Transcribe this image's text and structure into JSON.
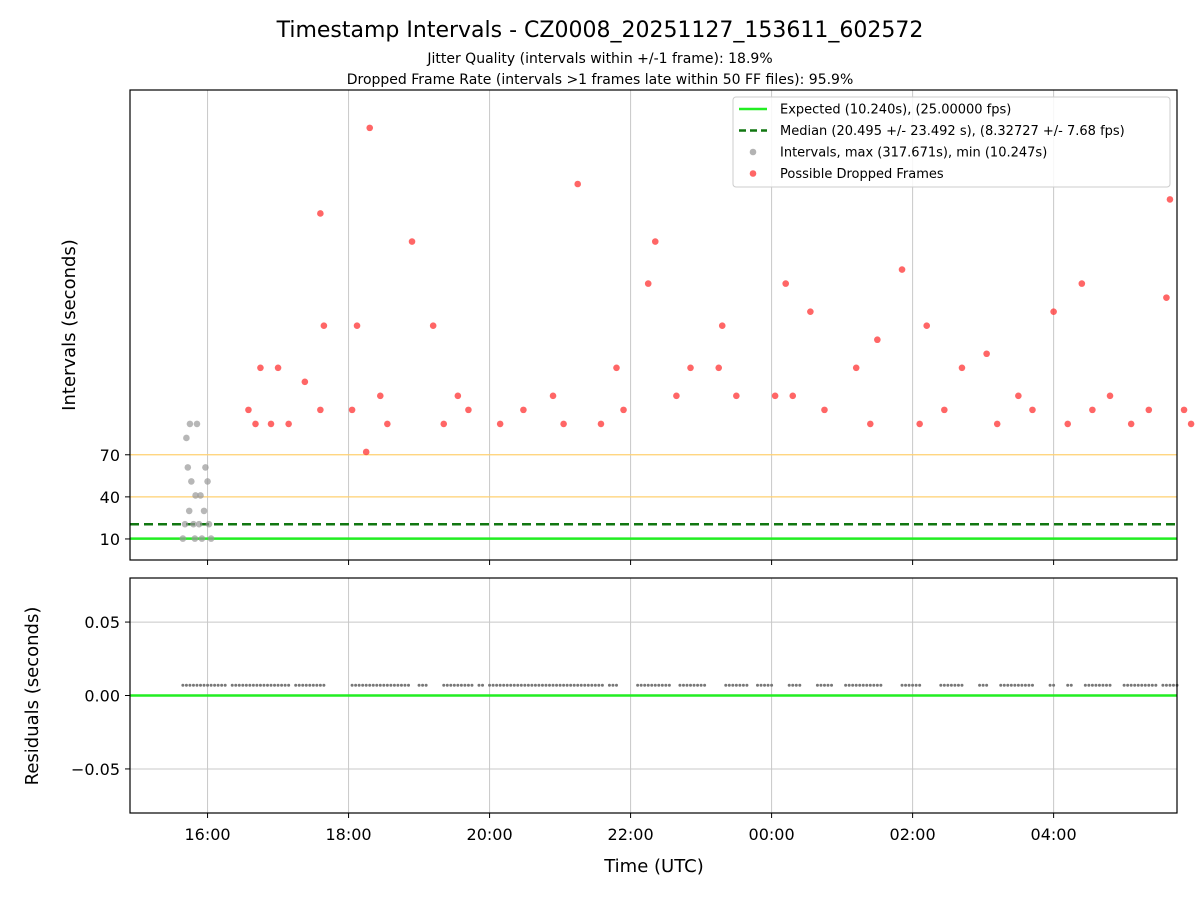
{
  "chart_data": [
    {
      "type": "scatter",
      "panel": "intervals",
      "title": "Timestamp Intervals - CZ0008_20251127_153611_602572",
      "subtitle_lines": [
        "Jitter Quality (intervals within +/-1 frame): 18.9%",
        "Dropped Frame Rate (intervals >1 frames late within 50 FF files): 95.9%"
      ],
      "ylabel": "Intervals (seconds)",
      "xlabel": "",
      "x_unit": "hours since 00:00 of first day",
      "xlim": [
        14.9,
        29.75
      ],
      "ylim": [
        -5,
        330
      ],
      "yticks": [
        10,
        40,
        70
      ],
      "ytick_labels": [
        "10",
        "40",
        "70"
      ],
      "xticks": [
        16,
        18,
        20,
        22,
        24,
        26,
        28
      ],
      "reference_lines": [
        {
          "name": "Expected",
          "y": 10.24,
          "color": "#22ee22",
          "style": "solid"
        },
        {
          "name": "Median",
          "y": 20.495,
          "color": "#117711",
          "style": "dashed"
        },
        {
          "name": "Gridline 40",
          "y": 40,
          "color": "#ffd070",
          "style": "solid"
        },
        {
          "name": "Gridline 70",
          "y": 70,
          "color": "#ffd070",
          "style": "solid"
        }
      ],
      "legend": {
        "placement": "top-right",
        "entries": [
          {
            "label": "Expected (10.240s), (25.00000 fps)",
            "kind": "line",
            "color": "#22ee22",
            "style": "solid"
          },
          {
            "label": "Median (20.495 +/- 23.492 s), (8.32727 +/- 7.68 fps)",
            "kind": "line",
            "color": "#117711",
            "style": "dashed"
          },
          {
            "label": "Intervals, max (317.671s), min (10.247s)",
            "kind": "marker",
            "color": "#999999"
          },
          {
            "label": "Possible Dropped Frames",
            "kind": "marker",
            "color": "#ff3333"
          }
        ]
      },
      "series": [
        {
          "name": "Intervals",
          "color": "#999999",
          "points": [
            [
              15.65,
              10.25
            ],
            [
              15.68,
              20.5
            ],
            [
              15.7,
              82
            ],
            [
              15.72,
              61
            ],
            [
              15.74,
              30
            ],
            [
              15.75,
              92
            ],
            [
              15.77,
              51
            ],
            [
              15.8,
              20.5
            ],
            [
              15.82,
              10.25
            ],
            [
              15.83,
              41
            ],
            [
              15.85,
              92
            ],
            [
              15.88,
              20.5
            ],
            [
              15.9,
              41
            ],
            [
              15.92,
              10.25
            ],
            [
              15.95,
              30
            ],
            [
              15.97,
              61
            ],
            [
              16.0,
              51
            ],
            [
              16.02,
              20.5
            ],
            [
              16.05,
              10.25
            ]
          ]
        },
        {
          "name": "Possible Dropped Frames",
          "color": "#ff3333",
          "points": [
            [
              18.3,
              303
            ],
            [
              21.25,
              263
            ],
            [
              17.6,
              242
            ],
            [
              18.9,
              222
            ],
            [
              22.35,
              222
            ],
            [
              29.65,
              252
            ],
            [
              22.25,
              192
            ],
            [
              24.2,
              192
            ],
            [
              25.85,
              202
            ],
            [
              28.4,
              192
            ],
            [
              17.65,
              162
            ],
            [
              18.12,
              162
            ],
            [
              19.2,
              162
            ],
            [
              21.8,
              132
            ],
            [
              23.3,
              162
            ],
            [
              24.55,
              172
            ],
            [
              25.5,
              152
            ],
            [
              26.2,
              162
            ],
            [
              26.7,
              132
            ],
            [
              27.05,
              142
            ],
            [
              28.0,
              172
            ],
            [
              29.6,
              182
            ],
            [
              17.0,
              132
            ],
            [
              17.38,
              122
            ],
            [
              16.75,
              132
            ],
            [
              19.55,
              112
            ],
            [
              18.45,
              112
            ],
            [
              20.9,
              112
            ],
            [
              24.05,
              112
            ],
            [
              25.2,
              132
            ],
            [
              22.85,
              132
            ],
            [
              23.25,
              132
            ],
            [
              27.5,
              112
            ],
            [
              28.8,
              112
            ],
            [
              29.85,
              102
            ],
            [
              16.58,
              102
            ],
            [
              16.68,
              92
            ],
            [
              16.9,
              92
            ],
            [
              17.15,
              92
            ],
            [
              17.6,
              102
            ],
            [
              18.05,
              102
            ],
            [
              18.25,
              72
            ],
            [
              18.55,
              92
            ],
            [
              19.35,
              92
            ],
            [
              19.7,
              102
            ],
            [
              20.15,
              92
            ],
            [
              20.48,
              102
            ],
            [
              21.05,
              92
            ],
            [
              21.58,
              92
            ],
            [
              21.9,
              102
            ],
            [
              22.65,
              112
            ],
            [
              23.5,
              112
            ],
            [
              24.3,
              112
            ],
            [
              24.75,
              102
            ],
            [
              25.4,
              92
            ],
            [
              26.1,
              92
            ],
            [
              26.45,
              102
            ],
            [
              27.2,
              92
            ],
            [
              27.7,
              102
            ],
            [
              28.2,
              92
            ],
            [
              28.55,
              102
            ],
            [
              29.1,
              92
            ],
            [
              29.35,
              102
            ],
            [
              29.95,
              92
            ]
          ]
        }
      ]
    },
    {
      "type": "scatter",
      "panel": "residuals",
      "ylabel": "Residuals (seconds)",
      "xlabel": "Time (UTC)",
      "xlim": [
        14.9,
        29.75
      ],
      "ylim": [
        -0.08,
        0.08
      ],
      "yticks": [
        0.05,
        0.0,
        -0.05
      ],
      "ytick_labels": [
        "0.05",
        "0.00",
        "−0.05"
      ],
      "xticks": [
        16,
        18,
        20,
        22,
        24,
        26,
        28
      ],
      "xtick_labels": [
        "16:00",
        "18:00",
        "20:00",
        "22:00",
        "00:00",
        "02:00",
        "04:00"
      ],
      "reference_line": {
        "y": 0.0,
        "color": "#22ee22"
      },
      "series": [
        {
          "name": "Residuals",
          "color": "#777777",
          "value": 0.007,
          "x_ranges": [
            [
              15.65,
              16.25
            ],
            [
              16.35,
              17.15
            ],
            [
              17.25,
              17.65
            ],
            [
              18.05,
              18.85
            ],
            [
              19.0,
              19.1
            ],
            [
              19.35,
              19.75
            ],
            [
              19.85,
              19.9
            ],
            [
              20.0,
              21.6
            ],
            [
              21.7,
              21.8
            ],
            [
              22.1,
              22.55
            ],
            [
              22.7,
              23.05
            ],
            [
              23.35,
              23.65
            ],
            [
              23.8,
              24.0
            ],
            [
              24.25,
              24.4
            ],
            [
              24.65,
              24.85
            ],
            [
              25.05,
              25.55
            ],
            [
              25.85,
              26.1
            ],
            [
              26.4,
              26.7
            ],
            [
              26.95,
              27.05
            ],
            [
              27.25,
              27.7
            ],
            [
              27.95,
              28.0
            ],
            [
              28.2,
              28.25
            ],
            [
              28.45,
              28.8
            ],
            [
              29.0,
              29.45
            ],
            [
              29.55,
              29.75
            ]
          ]
        }
      ]
    }
  ]
}
